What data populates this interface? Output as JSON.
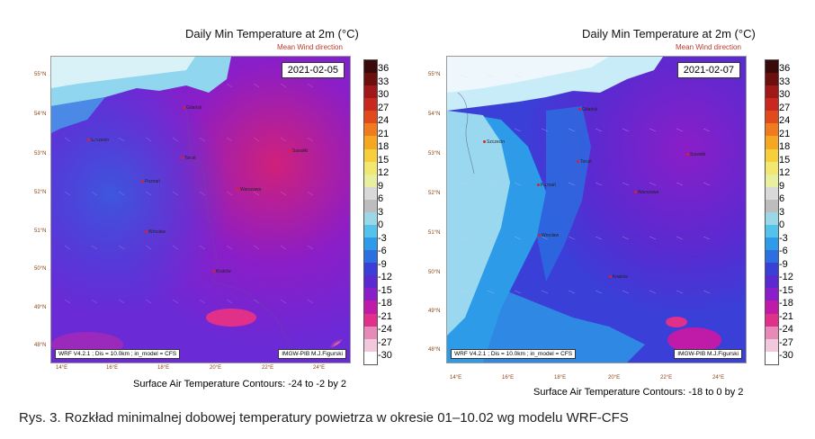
{
  "panels": [
    {
      "title": "Daily Min Temperature at 2m (°C)",
      "subtitle": "Mean Wind direction",
      "date": "2021-02-05",
      "info_left": "WRF V4.2.1 ; Dis = 10.0km ; in_model = CFS",
      "info_right": "IMGW-PIB M.J.Figurski",
      "contours": "Surface Air Temperature Contours: -24 to -2 by 2",
      "lat_labels": [
        "55°N",
        "54°N",
        "53°N",
        "52°N",
        "51°N",
        "50°N",
        "49°N",
        "48°N"
      ],
      "lon_labels": [
        "14°E",
        "16°E",
        "18°E",
        "20°E",
        "22°E",
        "24°E"
      ],
      "cities": [
        "Gdańsk",
        "Szczecin",
        "Toruń",
        "Suwałki",
        "Poznań",
        "Warszawa",
        "Wrocław",
        "Kraków"
      ],
      "colorbar_ticks": [
        "36",
        "33",
        "30",
        "27",
        "24",
        "21",
        "18",
        "15",
        "12",
        "9",
        "6",
        "3",
        "0",
        "-3",
        "-6",
        "-9",
        "-12",
        "-15",
        "-18",
        "-21",
        "-24",
        "-27",
        "-30"
      ]
    },
    {
      "title": "Daily Min Temperature at 2m (°C)",
      "subtitle": "Mean Wind direction",
      "date": "2021-02-07",
      "info_left": "WRF V4.2.1 ; Dis = 10.0km ; in_model = CFS",
      "info_right": "IMGW-PIB M.J.Figurski",
      "contours": "Surface Air Temperature Contours: -18 to 0 by 2",
      "lat_labels": [
        "55°N",
        "54°N",
        "53°N",
        "52°N",
        "51°N",
        "50°N",
        "49°N",
        "48°N"
      ],
      "lon_labels": [
        "14°E",
        "16°E",
        "18°E",
        "20°E",
        "22°E",
        "24°E"
      ],
      "cities": [
        "Gdańsk",
        "Szczecin",
        "Toruń",
        "Suwałki",
        "Poznań",
        "Warszawa",
        "Wrocław",
        "Kraków"
      ],
      "colorbar_ticks": [
        "36",
        "33",
        "30",
        "27",
        "24",
        "21",
        "18",
        "15",
        "12",
        "9",
        "6",
        "3",
        "0",
        "-3",
        "-6",
        "-9",
        "-12",
        "-15",
        "-18",
        "-21",
        "-24",
        "-27",
        "-30"
      ]
    }
  ],
  "caption": "Rys. 3. Rozkład minimalnej dobowej temperatury powietrza w okresie 01–10.02 wg modelu WRF-CFS",
  "colorbar_colors": [
    "#3a0a0a",
    "#6b0f0f",
    "#a01818",
    "#c8281e",
    "#e04a1c",
    "#f07a1e",
    "#f5a623",
    "#f7cf3c",
    "#f2e870",
    "#e8f0a0",
    "#d9d9d9",
    "#bdbdbd",
    "#9ad8e8",
    "#55c2ec",
    "#2e9be8",
    "#2b6fe0",
    "#3a3fd8",
    "#5a2ad0",
    "#8a1ec8",
    "#c01aa8",
    "#e0308a",
    "#e88ab8",
    "#f2c8dc",
    "#ffffff"
  ]
}
